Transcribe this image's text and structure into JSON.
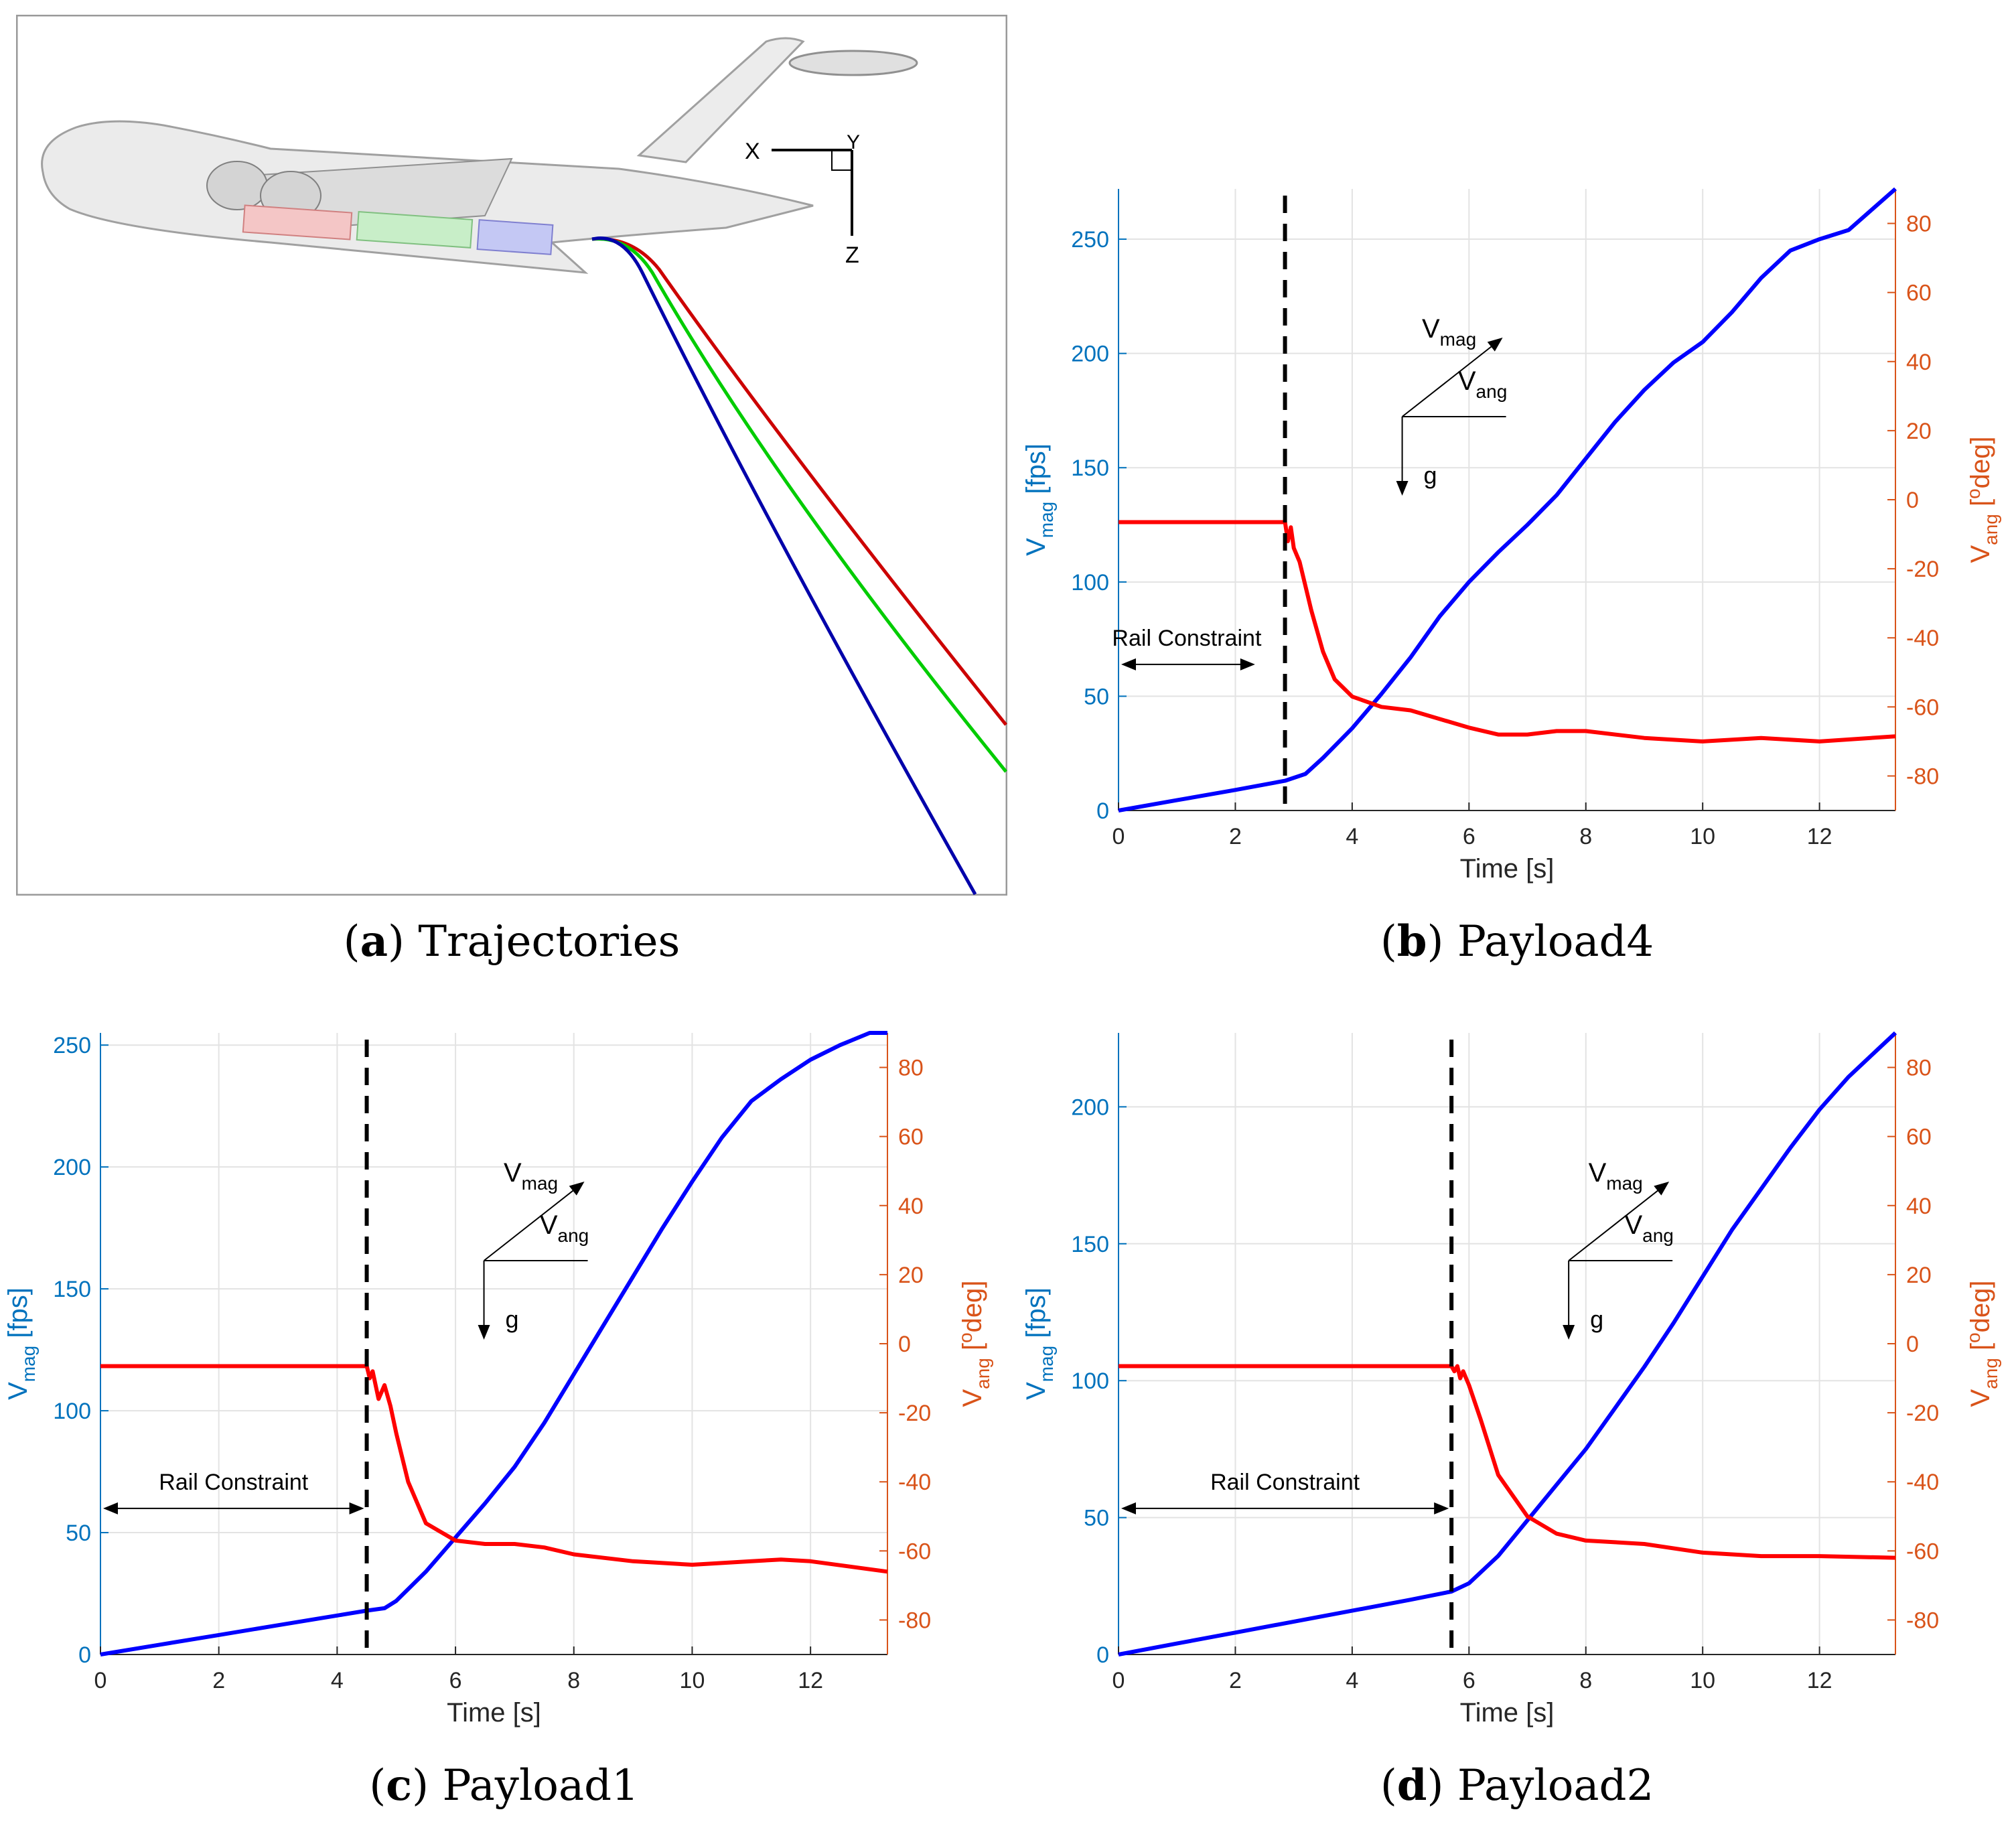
{
  "colors": {
    "vmag": "#0000ff",
    "vang": "#ff0000",
    "left_axis": "#0072bd",
    "right_axis": "#d95319",
    "grid": "#e3e3e3",
    "traj_red": "#cc0000",
    "traj_green": "#00cc00",
    "traj_blue": "#0000aa"
  },
  "panel_a": {
    "axes_labels": [
      "X",
      "Y",
      "Z"
    ],
    "trajectories": [
      "red",
      "green",
      "blue"
    ],
    "caption": {
      "letter": "a",
      "text": "Trajectories"
    }
  },
  "chart_data": [
    {
      "id": "payload4",
      "type": "line",
      "caption": {
        "letter": "b",
        "text": "Payload4"
      },
      "xlabel": "Time [s]",
      "ylabel_left": {
        "main": "V",
        "sub": "mag",
        "unit": " [fps]"
      },
      "ylabel_right": {
        "main": "V",
        "sub": "ang",
        "unit_sup": "o",
        "unit": "deg"
      },
      "xlim": [
        0,
        13.3
      ],
      "xticks": [
        0,
        2,
        4,
        6,
        8,
        10,
        12
      ],
      "ylim_left": [
        0,
        272
      ],
      "yticks_left": [
        0,
        50,
        100,
        150,
        200,
        250
      ],
      "ylim_right": [
        -90,
        90
      ],
      "yticks_right": [
        -80,
        -60,
        -40,
        -20,
        0,
        20,
        40,
        60,
        80
      ],
      "release_time": 2.85,
      "rail_label": "Rail Constraint",
      "rail_label_pos": "left-of-release",
      "inset": {
        "vmag": "V",
        "vmag_sub": "mag",
        "vang": "V",
        "vang_sub": "ang",
        "g": "g"
      },
      "series": [
        {
          "name": "Vmag",
          "axis": "left",
          "x": [
            0,
            1,
            2,
            2.85,
            3.2,
            3.5,
            4,
            4.5,
            5,
            5.5,
            6,
            6.5,
            7,
            7.5,
            8,
            8.5,
            9,
            9.5,
            10,
            10.5,
            11,
            11.5,
            12,
            12.5,
            13.3
          ],
          "values": [
            0,
            4.5,
            9,
            13,
            16,
            23,
            36,
            51,
            67,
            85,
            100,
            113,
            125,
            138,
            154,
            170,
            184,
            196,
            205,
            218,
            233,
            245,
            250,
            254,
            272
          ]
        },
        {
          "name": "Vang",
          "axis": "right",
          "x": [
            0,
            2.85,
            2.9,
            2.95,
            3.0,
            3.1,
            3.3,
            3.5,
            3.7,
            4,
            4.5,
            5,
            6,
            6.5,
            7,
            7.5,
            8,
            9,
            10,
            11,
            12,
            13.3
          ],
          "values": [
            -6.5,
            -6.5,
            -12,
            -8,
            -14,
            -18,
            -32,
            -44,
            -52,
            -57,
            -60,
            -61,
            -66,
            -68,
            -68,
            -67,
            -67,
            -69,
            -70,
            -69,
            -70,
            -68.5
          ]
        }
      ]
    },
    {
      "id": "payload1",
      "type": "line",
      "caption": {
        "letter": "c",
        "text": "Payload1"
      },
      "xlabel": "Time [s]",
      "ylabel_left": {
        "main": "V",
        "sub": "mag",
        "unit": " [fps]"
      },
      "ylabel_right": {
        "main": "V",
        "sub": "ang",
        "unit_sup": "o",
        "unit": "deg"
      },
      "xlim": [
        0,
        13.3
      ],
      "xticks": [
        0,
        2,
        4,
        6,
        8,
        10,
        12
      ],
      "ylim_left": [
        0,
        255
      ],
      "yticks_left": [
        0,
        50,
        100,
        150,
        200,
        250
      ],
      "ylim_right": [
        -90,
        90
      ],
      "yticks_right": [
        -80,
        -60,
        -40,
        -20,
        0,
        20,
        40,
        60,
        80
      ],
      "release_time": 4.5,
      "rail_label": "Rail Constraint",
      "rail_label_pos": "centered",
      "inset": {
        "vmag": "V",
        "vmag_sub": "mag",
        "vang": "V",
        "vang_sub": "ang",
        "g": "g"
      },
      "series": [
        {
          "name": "Vmag",
          "axis": "left",
          "x": [
            0,
            1,
            2,
            3,
            4,
            4.5,
            4.8,
            5,
            5.5,
            6,
            6.5,
            7,
            7.5,
            8,
            8.5,
            9,
            9.5,
            10,
            10.5,
            11,
            11.5,
            12,
            12.5,
            13,
            13.3
          ],
          "values": [
            0,
            4,
            8,
            12,
            16,
            18,
            19,
            22,
            34,
            48,
            62,
            77,
            95,
            115,
            135,
            155,
            175,
            194,
            212,
            227,
            236,
            244,
            250,
            255,
            255
          ]
        },
        {
          "name": "Vang",
          "axis": "right",
          "x": [
            0,
            4.5,
            4.55,
            4.6,
            4.7,
            4.8,
            4.9,
            5.0,
            5.2,
            5.5,
            6,
            6.5,
            7,
            7.5,
            8,
            9,
            10,
            11,
            11.5,
            12,
            13.3
          ],
          "values": [
            -6.5,
            -6.5,
            -10,
            -8,
            -16,
            -12,
            -18,
            -26,
            -40,
            -52,
            -57,
            -58,
            -58,
            -59,
            -61,
            -63,
            -64,
            -63,
            -62.5,
            -63,
            -66
          ]
        }
      ]
    },
    {
      "id": "payload2",
      "type": "line",
      "caption": {
        "letter": "d",
        "text": "Payload2"
      },
      "xlabel": "Time [s]",
      "ylabel_left": {
        "main": "V",
        "sub": "mag",
        "unit": " [fps]"
      },
      "ylabel_right": {
        "main": "V",
        "sub": "ang",
        "unit_sup": "o",
        "unit": "deg"
      },
      "xlim": [
        0,
        13.3
      ],
      "xticks": [
        0,
        2,
        4,
        6,
        8,
        10,
        12
      ],
      "ylim_left": [
        0,
        227
      ],
      "yticks_left": [
        0,
        50,
        100,
        150,
        200
      ],
      "ylim_right": [
        -90,
        90
      ],
      "yticks_right": [
        -80,
        -60,
        -40,
        -20,
        0,
        20,
        40,
        60,
        80
      ],
      "release_time": 5.7,
      "rail_label": "Rail Constraint",
      "rail_label_pos": "centered",
      "inset": {
        "vmag": "V",
        "vmag_sub": "mag",
        "vang": "V",
        "vang_sub": "ang",
        "g": "g"
      },
      "series": [
        {
          "name": "Vmag",
          "axis": "left",
          "x": [
            0,
            1,
            2,
            3,
            4,
            5,
            5.7,
            6,
            6.5,
            7,
            7.5,
            8,
            8.5,
            9,
            9.5,
            10,
            10.5,
            11,
            11.5,
            12,
            12.5,
            13,
            13.3
          ],
          "values": [
            0,
            4,
            8,
            12,
            16,
            20,
            23,
            26,
            36,
            49,
            62,
            75,
            90,
            105,
            121,
            138,
            155,
            170,
            185,
            199,
            211,
            221,
            227
          ]
        },
        {
          "name": "Vang",
          "axis": "right",
          "x": [
            0,
            5.7,
            5.75,
            5.8,
            5.85,
            5.9,
            6.0,
            6.2,
            6.5,
            7,
            7.5,
            8,
            8.5,
            9,
            10,
            11,
            12,
            13.3
          ],
          "values": [
            -6.5,
            -6.5,
            -8,
            -6.5,
            -10,
            -8,
            -12,
            -22,
            -38,
            -50,
            -55,
            -57,
            -57.5,
            -58,
            -60.5,
            -61.5,
            -61.5,
            -62
          ]
        }
      ]
    }
  ]
}
